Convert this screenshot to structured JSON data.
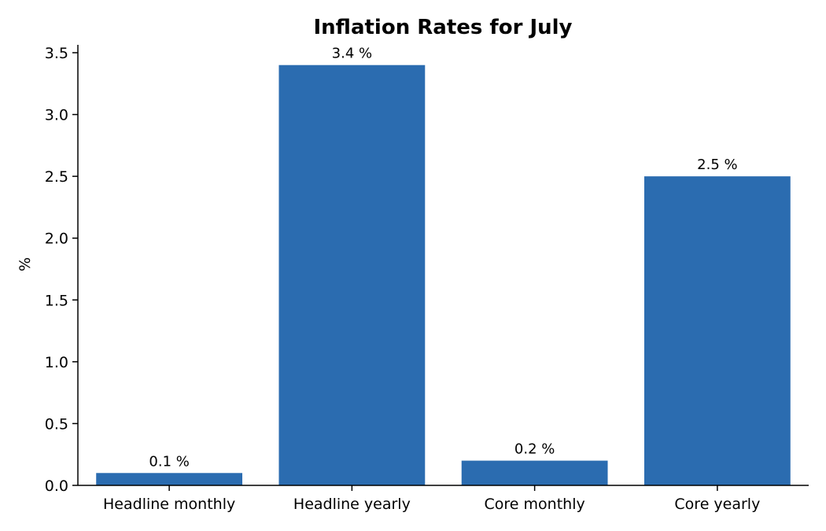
{
  "chart_data": {
    "type": "bar",
    "title": "Inflation Rates for July",
    "xlabel": "",
    "ylabel": "%",
    "categories": [
      "Headline monthly",
      "Headline yearly",
      "Core monthly",
      "Core yearly"
    ],
    "values": [
      0.1,
      3.4,
      0.2,
      2.5
    ],
    "data_labels": [
      "0.1 %",
      "3.4 %",
      "0.2 %",
      "2.5 %"
    ],
    "ylim": [
      0,
      3.5
    ],
    "yticks": [
      0.0,
      0.5,
      1.0,
      1.5,
      2.0,
      2.5,
      3.0,
      3.5
    ],
    "ytick_labels": [
      "0.0",
      "0.5",
      "1.0",
      "1.5",
      "2.0",
      "2.5",
      "3.0",
      "3.5"
    ],
    "bar_color": "#2b6cb0",
    "grid": false,
    "legend": "none"
  }
}
